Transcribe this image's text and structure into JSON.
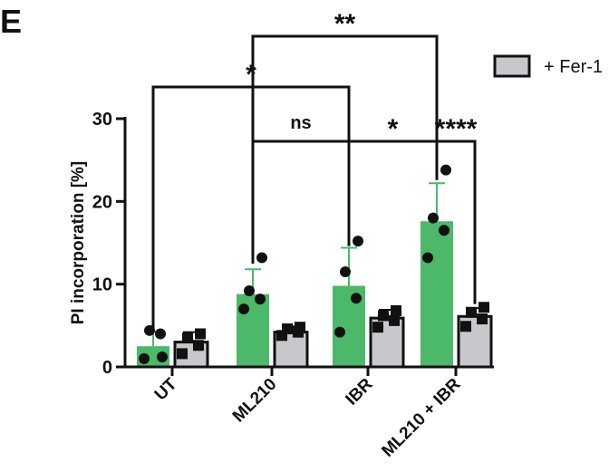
{
  "panel_label": "E",
  "chart_data": {
    "type": "bar",
    "categories": [
      "UT",
      "ML210",
      "IBR",
      "ML210 + IBR"
    ],
    "ylabel": "PI incorporation [%]",
    "xlabel": "",
    "ylim": [
      0,
      30
    ],
    "yticks": [
      0,
      10,
      20,
      30
    ],
    "legend": {
      "position": "top-right",
      "label": "+ Fer-1"
    },
    "series": [
      {
        "key": "control",
        "color": "#4cb86a",
        "means": [
          2.5,
          8.8,
          9.8,
          17.6
        ],
        "sd": [
          1.8,
          3.0,
          4.6,
          4.6
        ],
        "points": [
          [
            1.0,
            4.0,
            4.4,
            1.2
          ],
          [
            7.0,
            8.2,
            9.2,
            13.2
          ],
          [
            4.2,
            8.3,
            11.5,
            15.2
          ],
          [
            13.2,
            16.5,
            18.0,
            23.8
          ]
        ],
        "marker": "circle"
      },
      {
        "key": "fer1",
        "color": "#c8c8cc",
        "means": [
          3.0,
          4.2,
          5.9,
          6.1
        ],
        "sd": [
          1.2,
          0.7,
          1.0,
          1.0
        ],
        "points": [
          [
            1.6,
            2.6,
            3.5,
            4.0
          ],
          [
            3.8,
            4.2,
            4.6,
            4.8
          ],
          [
            4.8,
            5.6,
            6.2,
            6.8
          ],
          [
            4.9,
            5.8,
            6.6,
            7.2
          ]
        ],
        "marker": "square"
      }
    ],
    "annotations": [
      {
        "label": "*",
        "from": "UT-control",
        "to": "IBR-control"
      },
      {
        "label": "**",
        "from": "ML210-control",
        "to": "ML210 + IBR-control"
      },
      {
        "label": "ns",
        "from": "ML210-control",
        "to": "IBR-control"
      },
      {
        "label": "*",
        "from": "IBR-control",
        "to": "ML210 + IBR-control"
      },
      {
        "label": "****",
        "from": "ML210 + IBR-control",
        "to": "ML210 + IBR-fer1"
      }
    ]
  },
  "colors": {
    "axis": "#111111",
    "bar_edge": "#111111"
  }
}
